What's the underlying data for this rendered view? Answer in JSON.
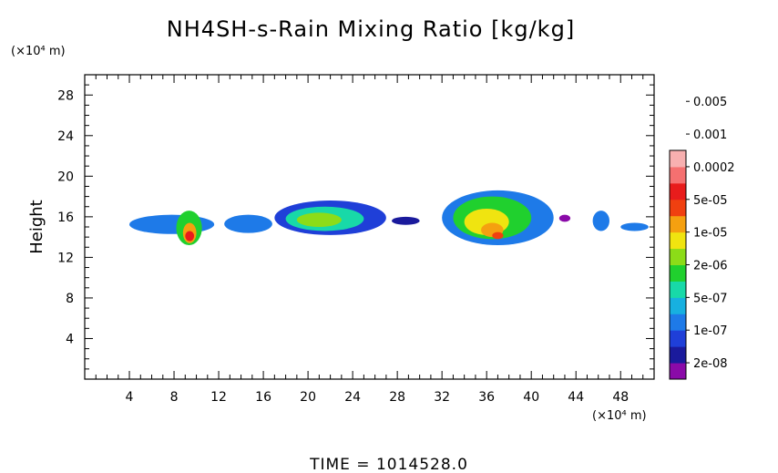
{
  "chart_data": {
    "type": "heatmap",
    "title": "NH4SH-s-Rain Mixing Ratio [kg/kg]",
    "ylabel": "Height",
    "xlabel": "",
    "x_unit": "(×10⁴ m)",
    "y_unit": "(×10⁴ m)",
    "xlim": [
      0,
      51
    ],
    "ylim": [
      0,
      30
    ],
    "x_ticks": [
      4,
      8,
      12,
      16,
      20,
      24,
      28,
      32,
      36,
      40,
      44,
      48
    ],
    "y_ticks": [
      4,
      8,
      12,
      16,
      20,
      24,
      28
    ],
    "footer": "TIME = 1014528.0",
    "colorbar": {
      "colors": [
        "#8a0aa8",
        "#1a1a9c",
        "#1f3fd8",
        "#1e7ae8",
        "#17b0e0",
        "#18d9a8",
        "#20d02e",
        "#8cdc18",
        "#f0e410",
        "#f5a010",
        "#f04010",
        "#e81c1c",
        "#f57070",
        "#f8b0b0"
      ],
      "labels": [
        "2e-08",
        "1e-07",
        "5e-07",
        "2e-06",
        "1e-05",
        "5e-05",
        "0.0002",
        "0.001",
        "0.005"
      ]
    },
    "cells": [
      {
        "x0": 4,
        "x1": 11.6,
        "y0": 14.3,
        "y1": 16.2,
        "level": 3
      },
      {
        "x0": 8.2,
        "x1": 10.5,
        "y0": 13.2,
        "y1": 16.6,
        "level": 6
      },
      {
        "x0": 8.8,
        "x1": 10.0,
        "y0": 13.4,
        "y1": 15.4,
        "level": 9
      },
      {
        "x0": 9.0,
        "x1": 9.8,
        "y0": 13.6,
        "y1": 14.6,
        "level": 11
      },
      {
        "x0": 12.5,
        "x1": 16.8,
        "y0": 14.4,
        "y1": 16.2,
        "level": 3
      },
      {
        "x0": 17,
        "x1": 27,
        "y0": 14.2,
        "y1": 17.6,
        "level": 2
      },
      {
        "x0": 18,
        "x1": 25,
        "y0": 14.6,
        "y1": 17.0,
        "level": 5
      },
      {
        "x0": 19,
        "x1": 23,
        "y0": 15.0,
        "y1": 16.4,
        "level": 7
      },
      {
        "x0": 27.5,
        "x1": 30,
        "y0": 15.2,
        "y1": 16.0,
        "level": 1
      },
      {
        "x0": 32,
        "x1": 42,
        "y0": 13.2,
        "y1": 18.6,
        "level": 3
      },
      {
        "x0": 33,
        "x1": 40,
        "y0": 13.8,
        "y1": 18.0,
        "level": 6
      },
      {
        "x0": 34,
        "x1": 38,
        "y0": 14.2,
        "y1": 16.8,
        "level": 8
      },
      {
        "x0": 35.5,
        "x1": 37.5,
        "y0": 14.0,
        "y1": 15.4,
        "level": 9
      },
      {
        "x0": 36.5,
        "x1": 37.5,
        "y0": 13.8,
        "y1": 14.5,
        "level": 10
      },
      {
        "x0": 42.5,
        "x1": 43.5,
        "y0": 15.5,
        "y1": 16.2,
        "level": 0
      },
      {
        "x0": 45.5,
        "x1": 47,
        "y0": 14.6,
        "y1": 16.6,
        "level": 3
      },
      {
        "x0": 48,
        "x1": 50.5,
        "y0": 14.6,
        "y1": 15.4,
        "level": 3
      }
    ]
  }
}
